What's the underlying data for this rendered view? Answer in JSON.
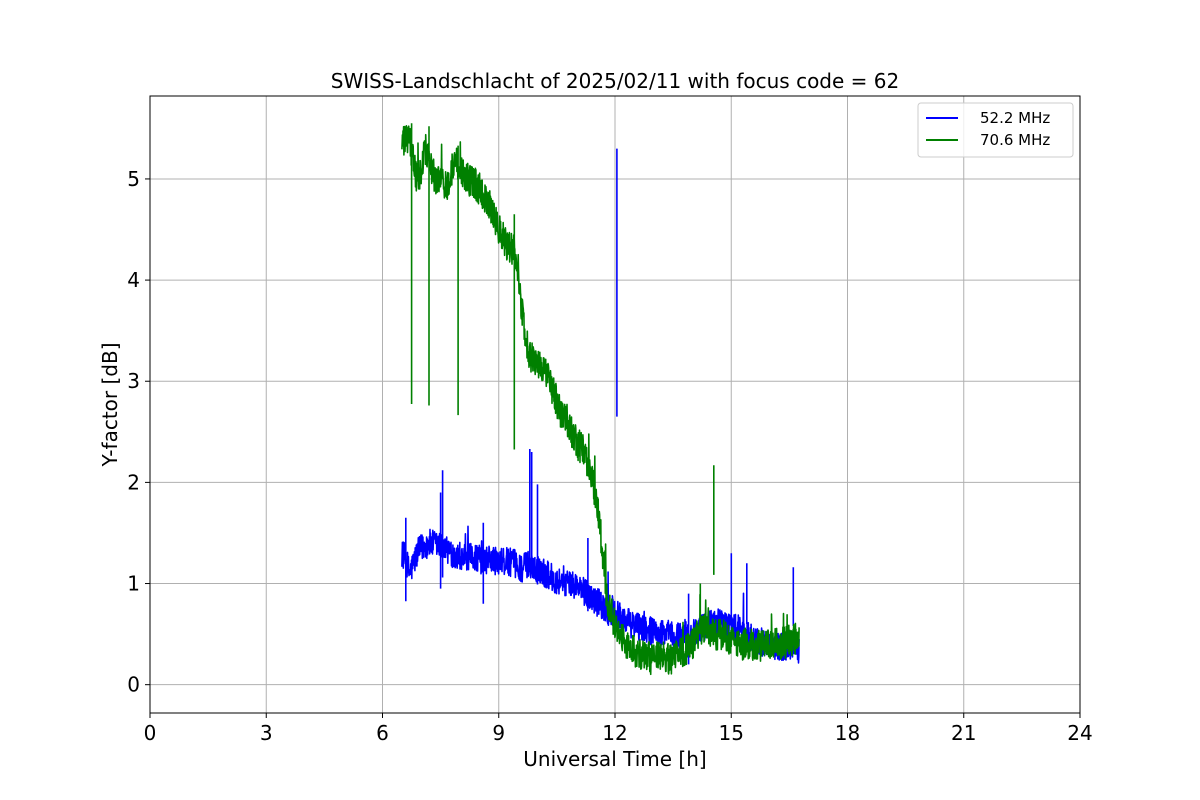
{
  "chart_data": {
    "type": "line",
    "title": "SWISS-Landschlacht of 2025/02/11 with focus code = 62",
    "xlabel": "Universal Time [h]",
    "ylabel": "Y-factor [dB]",
    "xlim": [
      0,
      24
    ],
    "ylim": [
      -0.28,
      5.82
    ],
    "xticks": [
      0,
      3,
      6,
      9,
      12,
      15,
      18,
      21,
      24
    ],
    "xtick_labels": [
      "0",
      "3",
      "6",
      "9",
      "12",
      "15",
      "18",
      "21",
      "24"
    ],
    "yticks": [
      0,
      1,
      2,
      3,
      4,
      5
    ],
    "ytick_labels": [
      "0",
      "1",
      "2",
      "3",
      "4",
      "5"
    ],
    "grid": true,
    "legend_position": "top-right",
    "series": [
      {
        "name": "52.2 MHz",
        "color": "#0000ff",
        "points": [
          [
            6.5,
            1.3
          ],
          [
            6.6,
            1.25
          ],
          [
            6.7,
            1.1
          ],
          [
            6.8,
            1.2
          ],
          [
            6.9,
            1.3
          ],
          [
            7.0,
            1.35
          ],
          [
            7.2,
            1.4
          ],
          [
            7.4,
            1.38
          ],
          [
            7.6,
            1.35
          ],
          [
            7.8,
            1.3
          ],
          [
            8.0,
            1.28
          ],
          [
            8.2,
            1.25
          ],
          [
            8.4,
            1.27
          ],
          [
            8.6,
            1.22
          ],
          [
            8.8,
            1.25
          ],
          [
            9.0,
            1.2
          ],
          [
            9.2,
            1.22
          ],
          [
            9.4,
            1.2
          ],
          [
            9.6,
            1.15
          ],
          [
            9.8,
            1.2
          ],
          [
            10.0,
            1.15
          ],
          [
            10.2,
            1.1
          ],
          [
            10.4,
            1.05
          ],
          [
            10.6,
            1.02
          ],
          [
            10.8,
            1.0
          ],
          [
            11.0,
            0.98
          ],
          [
            11.2,
            0.92
          ],
          [
            11.4,
            0.85
          ],
          [
            11.6,
            0.8
          ],
          [
            11.8,
            0.72
          ],
          [
            12.0,
            0.7
          ],
          [
            12.2,
            0.65
          ],
          [
            12.4,
            0.6
          ],
          [
            12.6,
            0.58
          ],
          [
            12.8,
            0.55
          ],
          [
            13.0,
            0.52
          ],
          [
            13.2,
            0.5
          ],
          [
            13.4,
            0.5
          ],
          [
            13.6,
            0.48
          ],
          [
            13.8,
            0.48
          ],
          [
            14.0,
            0.5
          ],
          [
            14.2,
            0.55
          ],
          [
            14.4,
            0.6
          ],
          [
            14.6,
            0.62
          ],
          [
            14.8,
            0.6
          ],
          [
            15.0,
            0.58
          ],
          [
            15.2,
            0.55
          ],
          [
            15.4,
            0.5
          ],
          [
            15.6,
            0.45
          ],
          [
            15.8,
            0.42
          ],
          [
            16.0,
            0.4
          ],
          [
            16.2,
            0.38
          ],
          [
            16.4,
            0.38
          ],
          [
            16.6,
            0.4
          ],
          [
            16.75,
            0.35
          ]
        ],
        "spikes": [
          [
            6.6,
            1.65
          ],
          [
            7.5,
            1.9
          ],
          [
            7.55,
            2.12
          ],
          [
            8.6,
            1.6
          ],
          [
            9.8,
            2.33
          ],
          [
            9.85,
            2.3
          ],
          [
            10.0,
            1.98
          ],
          [
            11.3,
            1.45
          ],
          [
            12.05,
            5.3
          ],
          [
            13.9,
            0.9
          ],
          [
            15.0,
            1.3
          ],
          [
            15.4,
            1.2
          ],
          [
            16.6,
            1.16
          ]
        ]
      },
      {
        "name": "70.6 MHz",
        "color": "#008000",
        "points": [
          [
            6.5,
            5.35
          ],
          [
            6.7,
            5.4
          ],
          [
            6.8,
            5.15
          ],
          [
            6.9,
            5.0
          ],
          [
            7.0,
            5.1
          ],
          [
            7.1,
            5.3
          ],
          [
            7.2,
            5.2
          ],
          [
            7.3,
            5.05
          ],
          [
            7.5,
            4.95
          ],
          [
            7.7,
            4.95
          ],
          [
            7.8,
            5.1
          ],
          [
            7.9,
            5.2
          ],
          [
            8.0,
            5.1
          ],
          [
            8.2,
            5.0
          ],
          [
            8.4,
            4.95
          ],
          [
            8.6,
            4.85
          ],
          [
            8.8,
            4.7
          ],
          [
            9.0,
            4.5
          ],
          [
            9.2,
            4.35
          ],
          [
            9.4,
            4.3
          ],
          [
            9.5,
            4.1
          ],
          [
            9.6,
            3.7
          ],
          [
            9.7,
            3.4
          ],
          [
            9.8,
            3.25
          ],
          [
            10.0,
            3.2
          ],
          [
            10.2,
            3.1
          ],
          [
            10.4,
            2.9
          ],
          [
            10.6,
            2.7
          ],
          [
            10.8,
            2.55
          ],
          [
            11.0,
            2.4
          ],
          [
            11.2,
            2.3
          ],
          [
            11.4,
            2.1
          ],
          [
            11.6,
            1.6
          ],
          [
            11.7,
            1.2
          ],
          [
            11.8,
            0.8
          ],
          [
            12.0,
            0.6
          ],
          [
            12.2,
            0.45
          ],
          [
            12.4,
            0.35
          ],
          [
            12.6,
            0.3
          ],
          [
            12.8,
            0.28
          ],
          [
            13.0,
            0.25
          ],
          [
            13.2,
            0.28
          ],
          [
            13.4,
            0.25
          ],
          [
            13.6,
            0.3
          ],
          [
            13.8,
            0.32
          ],
          [
            14.0,
            0.4
          ],
          [
            14.2,
            0.55
          ],
          [
            14.4,
            0.55
          ],
          [
            14.6,
            0.5
          ],
          [
            14.8,
            0.48
          ],
          [
            15.0,
            0.45
          ],
          [
            15.2,
            0.4
          ],
          [
            15.4,
            0.4
          ],
          [
            15.6,
            0.38
          ],
          [
            15.8,
            0.38
          ],
          [
            16.0,
            0.38
          ],
          [
            16.2,
            0.4
          ],
          [
            16.4,
            0.42
          ],
          [
            16.6,
            0.45
          ],
          [
            16.75,
            0.45
          ]
        ],
        "spikes": [
          [
            6.75,
            5.55
          ],
          [
            7.2,
            5.52
          ],
          [
            7.95,
            5.33
          ],
          [
            9.4,
            4.65
          ],
          [
            14.2,
            1.0
          ],
          [
            14.55,
            2.17
          ]
        ]
      }
    ]
  }
}
